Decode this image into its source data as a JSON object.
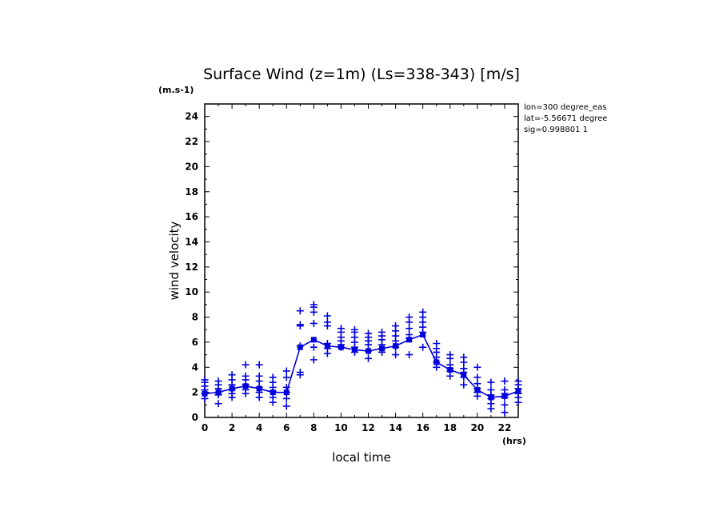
{
  "chart_data": {
    "type": "line",
    "title": "Surface Wind (z=1m) (Ls=338-343) [m/s]",
    "y_unit_label": "(m.s-1)",
    "x_unit_label": "(hrs)",
    "xlabel": "local time",
    "ylabel": "wind velocity",
    "xlim": [
      0,
      23
    ],
    "ylim": [
      0,
      25
    ],
    "x_ticks": [
      0,
      2,
      4,
      6,
      8,
      10,
      12,
      14,
      16,
      18,
      20,
      22
    ],
    "y_ticks": [
      0,
      2,
      4,
      6,
      8,
      10,
      12,
      14,
      16,
      18,
      20,
      22,
      24
    ],
    "info_lines": [
      "lon=300 degree_eas",
      "lat=-5.56671 degree",
      "sig=0.998801 1"
    ],
    "color": "#0000dd",
    "series": [
      {
        "type": "line",
        "x": [
          0,
          1,
          2,
          3,
          4,
          5,
          6,
          7,
          8,
          9,
          10,
          11,
          12,
          13,
          14,
          15,
          16,
          17,
          18,
          19,
          20,
          21,
          22,
          23
        ],
        "y": [
          1.9,
          2.0,
          2.3,
          2.5,
          2.3,
          2.0,
          2.0,
          5.6,
          6.2,
          5.7,
          5.6,
          5.4,
          5.3,
          5.5,
          5.7,
          6.2,
          6.6,
          4.4,
          3.8,
          3.4,
          2.2,
          1.6,
          1.7,
          2.1
        ]
      },
      {
        "type": "scatter",
        "marker": "plus",
        "points": [
          [
            0,
            1.5
          ],
          [
            0,
            1.9
          ],
          [
            0,
            2.2
          ],
          [
            0,
            2.5
          ],
          [
            0,
            2.8
          ],
          [
            0,
            3.0
          ],
          [
            1,
            1.1
          ],
          [
            1,
            1.8
          ],
          [
            1,
            2.0
          ],
          [
            1,
            2.3
          ],
          [
            1,
            2.6
          ],
          [
            1,
            2.9
          ],
          [
            2,
            1.6
          ],
          [
            2,
            1.9
          ],
          [
            2,
            2.2
          ],
          [
            2,
            2.6
          ],
          [
            2,
            3.0
          ],
          [
            2,
            3.4
          ],
          [
            3,
            1.9
          ],
          [
            3,
            2.2
          ],
          [
            3,
            2.6
          ],
          [
            3,
            3.0
          ],
          [
            3,
            3.3
          ],
          [
            3,
            4.2
          ],
          [
            4,
            1.6
          ],
          [
            4,
            2.0
          ],
          [
            4,
            2.4
          ],
          [
            4,
            2.9
          ],
          [
            4,
            3.3
          ],
          [
            4,
            4.2
          ],
          [
            5,
            1.2
          ],
          [
            5,
            1.6
          ],
          [
            5,
            2.1
          ],
          [
            5,
            2.4
          ],
          [
            5,
            2.8
          ],
          [
            5,
            3.2
          ],
          [
            6,
            0.9
          ],
          [
            6,
            1.5
          ],
          [
            6,
            2.0
          ],
          [
            6,
            2.4
          ],
          [
            6,
            3.2
          ],
          [
            6,
            3.7
          ],
          [
            7,
            3.4
          ],
          [
            7,
            3.6
          ],
          [
            7,
            5.7
          ],
          [
            7,
            7.3
          ],
          [
            7,
            7.4
          ],
          [
            7,
            8.5
          ],
          [
            8,
            4.6
          ],
          [
            8,
            5.6
          ],
          [
            8,
            7.5
          ],
          [
            8,
            8.4
          ],
          [
            8,
            8.8
          ],
          [
            8,
            9.0
          ],
          [
            9,
            5.1
          ],
          [
            9,
            5.5
          ],
          [
            9,
            5.9
          ],
          [
            9,
            7.3
          ],
          [
            9,
            7.6
          ],
          [
            9,
            8.1
          ],
          [
            10,
            5.6
          ],
          [
            10,
            5.8
          ],
          [
            10,
            6.1
          ],
          [
            10,
            6.4
          ],
          [
            10,
            6.8
          ],
          [
            10,
            7.1
          ],
          [
            11,
            5.2
          ],
          [
            11,
            5.6
          ],
          [
            11,
            6.0
          ],
          [
            11,
            6.4
          ],
          [
            11,
            6.8
          ],
          [
            11,
            7.0
          ],
          [
            12,
            4.7
          ],
          [
            12,
            5.3
          ],
          [
            12,
            5.8
          ],
          [
            12,
            6.1
          ],
          [
            12,
            6.4
          ],
          [
            12,
            6.7
          ],
          [
            13,
            5.2
          ],
          [
            13,
            5.5
          ],
          [
            13,
            5.8
          ],
          [
            13,
            6.2
          ],
          [
            13,
            6.5
          ],
          [
            13,
            6.8
          ],
          [
            14,
            5.0
          ],
          [
            14,
            5.6
          ],
          [
            14,
            6.1
          ],
          [
            14,
            6.5
          ],
          [
            14,
            6.9
          ],
          [
            14,
            7.3
          ],
          [
            15,
            5.0
          ],
          [
            15,
            6.3
          ],
          [
            15,
            6.6
          ],
          [
            15,
            7.1
          ],
          [
            15,
            7.6
          ],
          [
            15,
            8.0
          ],
          [
            16,
            5.6
          ],
          [
            16,
            6.8
          ],
          [
            16,
            7.2
          ],
          [
            16,
            7.6
          ],
          [
            16,
            8.0
          ],
          [
            16,
            8.4
          ],
          [
            17,
            4.0
          ],
          [
            17,
            4.4
          ],
          [
            17,
            4.8
          ],
          [
            17,
            5.2
          ],
          [
            17,
            5.5
          ],
          [
            17,
            5.9
          ],
          [
            18,
            3.3
          ],
          [
            18,
            3.7
          ],
          [
            18,
            3.9
          ],
          [
            18,
            4.2
          ],
          [
            18,
            4.7
          ],
          [
            18,
            5.0
          ],
          [
            19,
            2.6
          ],
          [
            19,
            3.2
          ],
          [
            19,
            3.6
          ],
          [
            19,
            3.9
          ],
          [
            19,
            4.4
          ],
          [
            19,
            4.8
          ],
          [
            20,
            1.7
          ],
          [
            20,
            2.0
          ],
          [
            20,
            2.3
          ],
          [
            20,
            2.7
          ],
          [
            20,
            3.2
          ],
          [
            20,
            4.0
          ],
          [
            21,
            0.7
          ],
          [
            21,
            1.1
          ],
          [
            21,
            1.5
          ],
          [
            21,
            1.8
          ],
          [
            21,
            2.2
          ],
          [
            21,
            2.8
          ],
          [
            22,
            0.4
          ],
          [
            22,
            1.0
          ],
          [
            22,
            1.6
          ],
          [
            22,
            1.9
          ],
          [
            22,
            2.2
          ],
          [
            22,
            2.9
          ],
          [
            23,
            1.2
          ],
          [
            23,
            1.6
          ],
          [
            23,
            1.9
          ],
          [
            23,
            2.3
          ],
          [
            23,
            2.6
          ],
          [
            23,
            2.9
          ]
        ]
      }
    ]
  }
}
